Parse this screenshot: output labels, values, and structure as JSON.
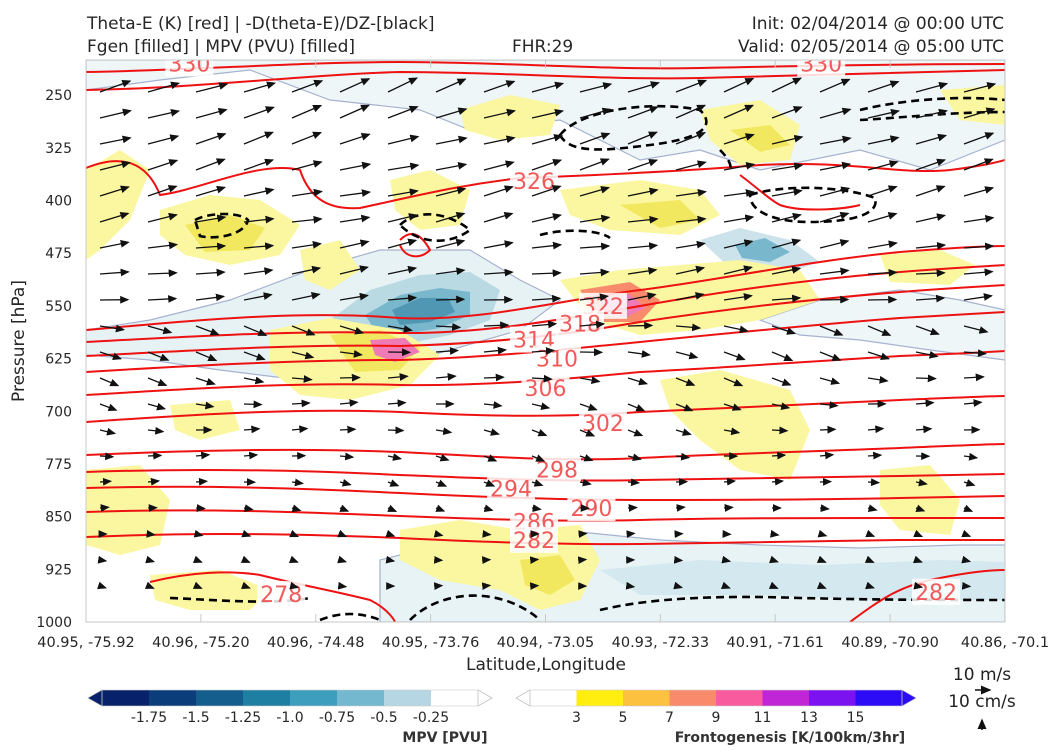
{
  "header": {
    "title_left_1": "Theta-E (K) [red] | -D(theta-E)/DZ-[black]",
    "title_left_2": "Fgen [filled] | MPV (PVU) [filled]",
    "fhr": "FHR:29",
    "init": "Init: 02/04/2014 @ 00:00 UTC",
    "valid": "Valid: 02/05/2014 @ 05:00 UTC"
  },
  "chart_data": {
    "type": "cross-section",
    "xlabel": "Latitude,Longitude",
    "ylabel": "Pressure [hPa]",
    "ylim": [
      1000,
      200
    ],
    "x_ticks": [
      "40.95, -75.92",
      "40.96, -75.20",
      "40.96, -74.48",
      "40.95, -73.76",
      "40.94, -73.05",
      "40.93, -72.33",
      "40.91, -71.61",
      "40.89, -70.90",
      "40.86, -70.1"
    ],
    "y_ticks": [
      250,
      325,
      400,
      475,
      550,
      625,
      700,
      775,
      850,
      925,
      1000
    ],
    "theta_e_contour_labels": [
      {
        "value": 330,
        "x_index": 0.9,
        "p": 205
      },
      {
        "value": 330,
        "x_index": 6.4,
        "p": 205
      },
      {
        "value": 326,
        "x_index": 3.9,
        "p": 372
      },
      {
        "value": 322,
        "x_index": 4.5,
        "p": 550
      },
      {
        "value": 318,
        "x_index": 4.3,
        "p": 575
      },
      {
        "value": 314,
        "x_index": 3.9,
        "p": 598
      },
      {
        "value": 310,
        "x_index": 4.1,
        "p": 625
      },
      {
        "value": 306,
        "x_index": 4.0,
        "p": 667
      },
      {
        "value": 302,
        "x_index": 4.5,
        "p": 717
      },
      {
        "value": 298,
        "x_index": 4.1,
        "p": 783
      },
      {
        "value": 294,
        "x_index": 3.7,
        "p": 810
      },
      {
        "value": 290,
        "x_index": 4.4,
        "p": 838
      },
      {
        "value": 286,
        "x_index": 3.9,
        "p": 857
      },
      {
        "value": 282,
        "x_index": 3.9,
        "p": 883
      },
      {
        "value": 282,
        "x_index": 7.4,
        "p": 957
      },
      {
        "value": 278,
        "x_index": 1.7,
        "p": 960
      }
    ],
    "wind_reference": {
      "horizontal": "10 m/s",
      "vertical": "10 cm/s"
    }
  },
  "colorbars": {
    "mpv": {
      "label": "MPV [PVU]",
      "ticks": [
        "-1.75",
        "-1.5",
        "-1.25",
        "-1.0",
        "-0.75",
        "-0.5",
        "-0.25"
      ],
      "colors": [
        "#08216b",
        "#0b3d7a",
        "#135e8c",
        "#1f7fa2",
        "#3d9fbd",
        "#74b8d0",
        "#b5d6e2",
        "#ffffff"
      ]
    },
    "fgen": {
      "label": "Frontogenesis [K/100km/3hr]",
      "ticks": [
        "3",
        "5",
        "7",
        "9",
        "11",
        "13",
        "15"
      ],
      "colors": [
        "#ffffff",
        "#ffee10",
        "#fcc13f",
        "#f98a6c",
        "#f85b9e",
        "#c126d6",
        "#7a13f0",
        "#2c0cf6"
      ]
    }
  },
  "colors": {
    "theta_e": "#ee1111",
    "theta_e_label": "#f25a5a",
    "gradient_contour": "#000000",
    "mpv_outline": "#a6b2cf",
    "fgen_light": "#fbf7a0",
    "fgen_med": "#f2e860",
    "mpv_light": "#cde3ec",
    "mpv_med": "#79b7cc",
    "mpv_dark": "#4f97b3",
    "fgen_peak": "#f07ab6"
  }
}
